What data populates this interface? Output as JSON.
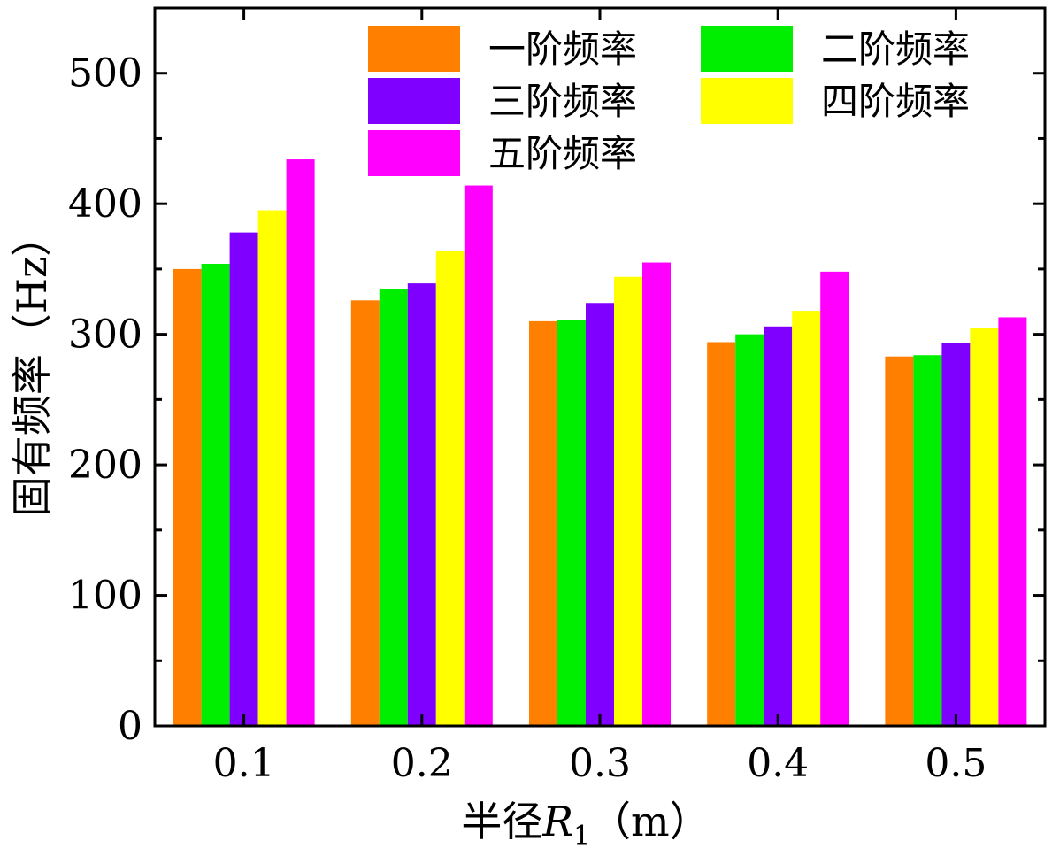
{
  "chart_data": {
    "type": "bar",
    "categories": [
      "0.1",
      "0.2",
      "0.3",
      "0.4",
      "0.5"
    ],
    "series": [
      {
        "name": "一阶频率",
        "color": "#FF7F00",
        "values": [
          350,
          326,
          310,
          294,
          283
        ]
      },
      {
        "name": "二阶频率",
        "color": "#00EE00",
        "values": [
          354,
          335,
          311,
          300,
          284
        ]
      },
      {
        "name": "三阶频率",
        "color": "#7F00FF",
        "values": [
          378,
          339,
          324,
          306,
          293
        ]
      },
      {
        "name": "四阶频率",
        "color": "#FFFF00",
        "values": [
          395,
          364,
          344,
          318,
          305
        ]
      },
      {
        "name": "五阶频率",
        "color": "#FF00FF",
        "values": [
          434,
          414,
          355,
          348,
          313
        ]
      }
    ],
    "ylim": [
      0,
      550
    ],
    "yticks": [
      0,
      100,
      200,
      300,
      400,
      500
    ],
    "xlabel": {
      "prefix": "半径",
      "var": "R",
      "sub": "1",
      "suffix": "（m）"
    },
    "ylabel": "固有频率（Hz）",
    "legend_position": "top-right",
    "grid": false
  }
}
